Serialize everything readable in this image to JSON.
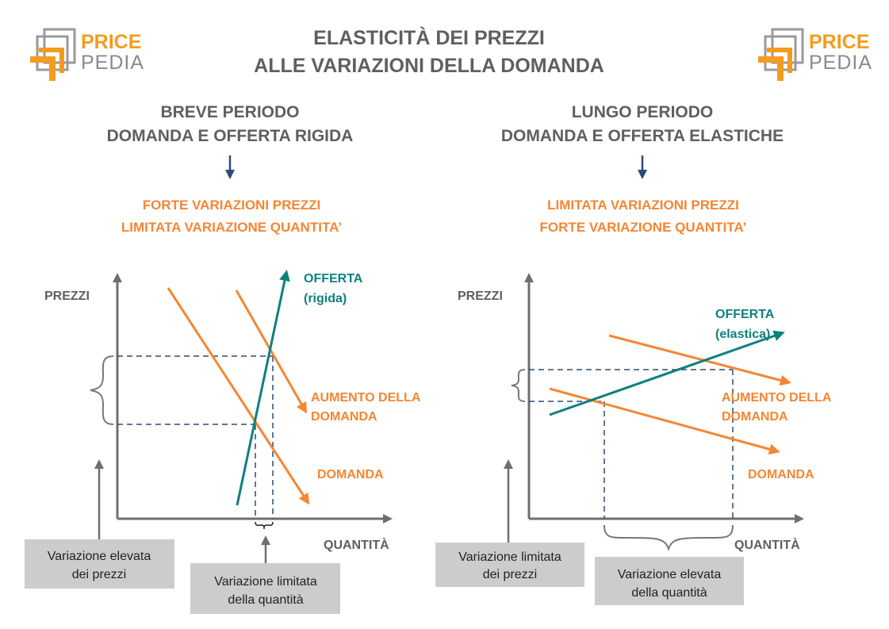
{
  "colors": {
    "text_gray": "#5f5f5f",
    "orange": "#f58634",
    "teal": "#0e8080",
    "navy": "#2e4a7a",
    "dashed": "#2d4b75",
    "axis": "#6f6f6f",
    "box_fill": "#cccccc",
    "logo_gray": "#8a8a8a"
  },
  "logo": {
    "word1": "PRICE",
    "word2": "PEDIA"
  },
  "title": {
    "line1": "ELASTICITÀ DEI PREZZI",
    "line2": "ALLE VARIAZIONI DELLA DOMANDA"
  },
  "left": {
    "heading": [
      "BREVE PERIODO",
      "DOMANDA E OFFERTA RIGIDA"
    ],
    "effect": [
      "FORTE VARIAZIONI PREZZI",
      "LIMITATA VARIAZIONE QUANTITA’"
    ],
    "y_axis_label": "PREZZI",
    "supply_label": [
      "OFFERTA",
      "(rigida)"
    ],
    "demand_increase_label": [
      "AUMENTO DELLA",
      "DOMANDA"
    ],
    "demand_label": "DOMANDA",
    "price_box": [
      "Variazione elevata",
      "dei prezzi"
    ],
    "quantity_box": [
      "Variazione limitata",
      "della quantità"
    ],
    "x_axis_label": "QUANTITÀ"
  },
  "right": {
    "heading": [
      "LUNGO PERIODO",
      "DOMANDA E OFFERTA ELASTICHE"
    ],
    "effect": [
      "LIMITATA VARIAZIONI PREZZI",
      "FORTE VARIAZIONE QUANTITA’"
    ],
    "y_axis_label": "PREZZI",
    "supply_label": [
      "OFFERTA",
      "(elastica)"
    ],
    "demand_increase_label": [
      "AUMENTO DELLA",
      "DOMANDA"
    ],
    "demand_label": "DOMANDA",
    "price_box": [
      "Variazione limitata",
      "dei prezzi"
    ],
    "quantity_box": [
      "Variazione elevata",
      "della quantità"
    ],
    "x_axis_label": "QUANTITÀ"
  }
}
